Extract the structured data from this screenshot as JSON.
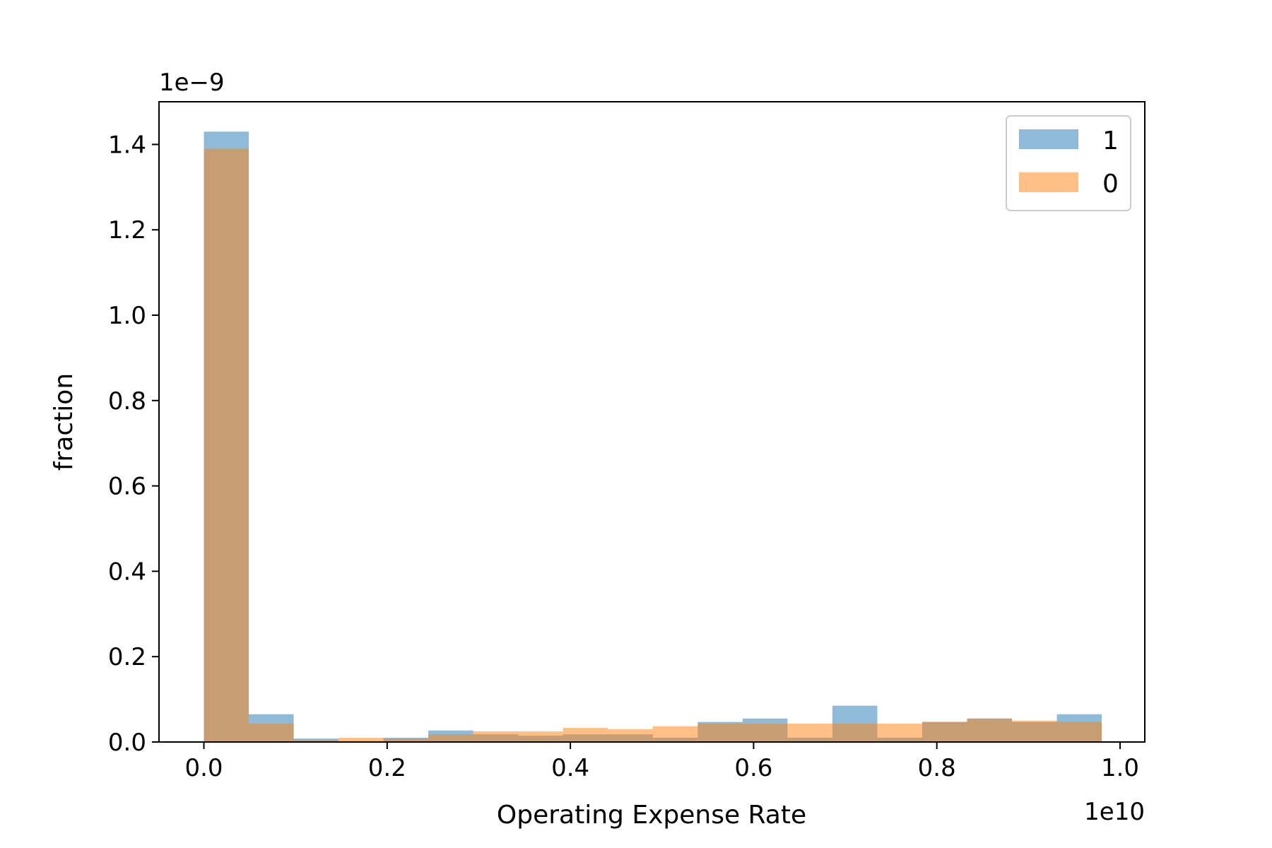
{
  "chart_data": {
    "type": "bar",
    "subtype": "histogram",
    "title": "",
    "xlabel": "Operating Expense Rate",
    "ylabel": "fraction",
    "x_exponent_label": "1e10",
    "y_exponent_label": "1e−9",
    "x_scale": 10000000000,
    "y_scale": 1e-09,
    "xlim": [
      -0.049,
      1.027
    ],
    "ylim": [
      0,
      1.5
    ],
    "x_ticks": [
      0.0,
      0.2,
      0.4,
      0.6,
      0.8,
      1.0
    ],
    "x_tick_labels": [
      "0.0",
      "0.2",
      "0.4",
      "0.6",
      "0.8",
      "1.0"
    ],
    "y_ticks": [
      0.0,
      0.2,
      0.4,
      0.6,
      0.8,
      1.0,
      1.2,
      1.4
    ],
    "y_tick_labels": [
      "0.0",
      "0.2",
      "0.4",
      "0.6",
      "0.8",
      "1.0",
      "1.2",
      "1.4"
    ],
    "bin_edges": [
      0.0,
      0.049,
      0.098,
      0.147,
      0.196,
      0.245,
      0.294,
      0.343,
      0.392,
      0.441,
      0.49,
      0.539,
      0.588,
      0.637,
      0.686,
      0.735,
      0.784,
      0.833,
      0.882,
      0.931,
      0.98
    ],
    "grid": false,
    "legend_position": "top-right",
    "series": [
      {
        "name": "1",
        "color": "#1f77b4",
        "opacity": 0.5,
        "values": [
          1.43,
          0.065,
          0.008,
          0.0,
          0.01,
          0.027,
          0.018,
          0.015,
          0.018,
          0.018,
          0.01,
          0.047,
          0.055,
          0.01,
          0.085,
          0.01,
          0.047,
          0.055,
          0.047,
          0.065
        ]
      },
      {
        "name": "0",
        "color": "#ff7f0e",
        "opacity": 0.5,
        "values": [
          1.39,
          0.043,
          0.005,
          0.01,
          0.008,
          0.018,
          0.025,
          0.025,
          0.033,
          0.03,
          0.037,
          0.043,
          0.043,
          0.043,
          0.043,
          0.043,
          0.047,
          0.055,
          0.05,
          0.047
        ]
      }
    ]
  }
}
